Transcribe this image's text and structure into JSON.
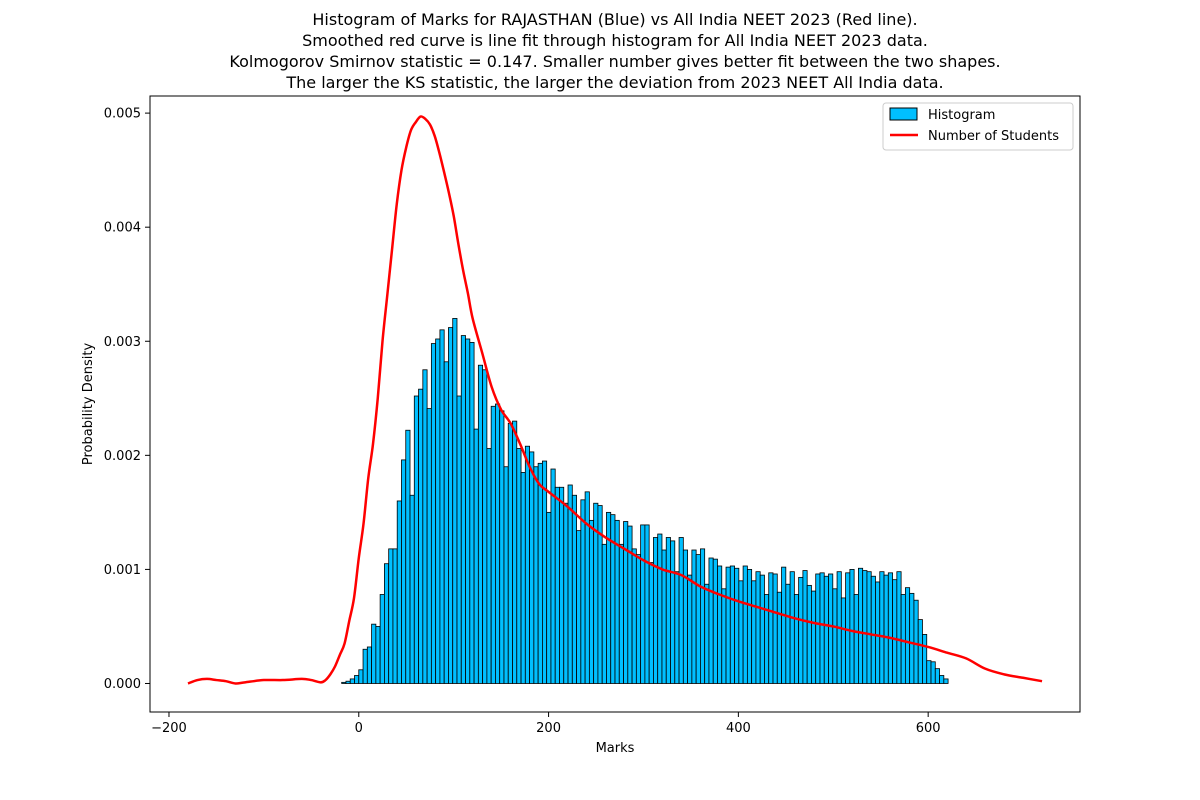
{
  "chart_data": {
    "type": "bar+line",
    "title_lines": [
      "Histogram of Marks for RAJASTHAN (Blue) vs All India NEET 2023 (Red line).",
      "Smoothed red curve is line fit through histogram for All India NEET 2023 data.",
      "Kolmogorov Smirnov statistic = 0.147. Smaller number gives better fit between the two shapes.",
      "The larger the KS statistic, the larger the deviation from 2023 NEET All India data."
    ],
    "xlabel": "Marks",
    "ylabel": "Probability Density",
    "xlim": [
      -220,
      760
    ],
    "ylim": [
      -0.00025,
      0.00515
    ],
    "xticks": [
      -200,
      0,
      200,
      400,
      600
    ],
    "xtick_labels": [
      "−200",
      "0",
      "200",
      "400",
      "600"
    ],
    "yticks": [
      0,
      0.001,
      0.002,
      0.003,
      0.004,
      0.005
    ],
    "ytick_labels": [
      "0.000",
      "0.001",
      "0.002",
      "0.003",
      "0.004",
      "0.005"
    ],
    "legend": {
      "position": "top-right",
      "entries": [
        {
          "label": "Histogram",
          "kind": "bar"
        },
        {
          "label": "Number of Students",
          "kind": "line"
        }
      ]
    },
    "colors": {
      "bar_fill": "#00bfff",
      "bar_edge": "#000000",
      "line": "#ff0000"
    },
    "histogram": {
      "name": "Histogram",
      "bin_start": -180,
      "bin_width": 4.5,
      "values": [
        0,
        0,
        0,
        0,
        0,
        0,
        0,
        0,
        0,
        0,
        0,
        0,
        0,
        0,
        0,
        0,
        0,
        0,
        0,
        0,
        0,
        0,
        0,
        0,
        0,
        0,
        0,
        0,
        0,
        0,
        0,
        0,
        0,
        0,
        0,
        0,
        1e-05,
        2e-05,
        4e-05,
        7e-05,
        0.00012,
        0.0003,
        0.00032,
        0.00052,
        0.0005,
        0.00078,
        0.00105,
        0.00118,
        0.00118,
        0.0016,
        0.00196,
        0.00222,
        0.00165,
        0.00252,
        0.00258,
        0.00275,
        0.00241,
        0.00298,
        0.00302,
        0.0031,
        0.00282,
        0.00312,
        0.0032,
        0.00252,
        0.00305,
        0.00302,
        0.00299,
        0.00223,
        0.00279,
        0.00275,
        0.00206,
        0.00243,
        0.00245,
        0.00239,
        0.0019,
        0.00228,
        0.0023,
        0.00206,
        0.00185,
        0.00208,
        0.00203,
        0.0019,
        0.00193,
        0.00195,
        0.0015,
        0.00188,
        0.00172,
        0.00172,
        0.00158,
        0.00174,
        0.00165,
        0.00134,
        0.00161,
        0.00168,
        0.00143,
        0.00158,
        0.00156,
        0.00122,
        0.0015,
        0.00148,
        0.00143,
        0.00122,
        0.00142,
        0.00138,
        0.00118,
        0.00113,
        0.00139,
        0.00139,
        0.00106,
        0.00128,
        0.00131,
        0.00117,
        0.00128,
        0.00125,
        0.00098,
        0.00128,
        0.00117,
        0.00095,
        0.00117,
        0.00113,
        0.00118,
        0.00087,
        0.0011,
        0.00109,
        0.00103,
        0.00083,
        0.00102,
        0.00103,
        0.00101,
        0.0009,
        0.00103,
        0.001,
        0.0009,
        0.00098,
        0.00095,
        0.00078,
        0.00097,
        0.00096,
        0.0008,
        0.00102,
        0.00087,
        0.00098,
        0.00078,
        0.00093,
        0.00099,
        0.00086,
        0.00081,
        0.00096,
        0.00097,
        0.00094,
        0.00096,
        0.00083,
        0.00098,
        0.00075,
        0.00097,
        0.001,
        0.00078,
        0.00101,
        0.00099,
        0.00098,
        0.00094,
        0.00089,
        0.00098,
        0.00095,
        0.00097,
        0.00091,
        0.00098,
        0.00078,
        0.00084,
        0.00079,
        0.00073,
        0.00056,
        0.00043,
        0.0002,
        0.00019,
        0.00013,
        7e-05,
        4e-05
      ]
    },
    "line_series": {
      "name": "Number of Students",
      "x": [
        -180,
        -170,
        -160,
        -150,
        -140,
        -130,
        -120,
        -100,
        -80,
        -60,
        -50,
        -40,
        -35,
        -30,
        -25,
        -20,
        -15,
        -10,
        -5,
        0,
        5,
        10,
        15,
        20,
        25,
        30,
        35,
        40,
        45,
        50,
        55,
        60,
        65,
        70,
        75,
        80,
        85,
        90,
        95,
        100,
        105,
        110,
        115,
        120,
        130,
        140,
        150,
        160,
        170,
        180,
        190,
        200,
        220,
        240,
        260,
        280,
        300,
        320,
        340,
        360,
        380,
        400,
        420,
        440,
        460,
        480,
        500,
        520,
        540,
        560,
        580,
        600,
        620,
        640,
        660,
        680,
        700,
        720
      ],
      "y": [
        0,
        3e-05,
        4e-05,
        3e-05,
        2e-05,
        0,
        1e-05,
        3e-05,
        3e-05,
        4e-05,
        3e-05,
        1e-05,
        3e-05,
        8e-05,
        0.00015,
        0.00025,
        0.00035,
        0.00055,
        0.00075,
        0.0011,
        0.0014,
        0.0018,
        0.0021,
        0.0025,
        0.003,
        0.0034,
        0.0038,
        0.0042,
        0.0045,
        0.0047,
        0.00485,
        0.00492,
        0.00497,
        0.00495,
        0.0049,
        0.0048,
        0.00465,
        0.00448,
        0.0043,
        0.0041,
        0.00385,
        0.00362,
        0.00342,
        0.0032,
        0.0029,
        0.0026,
        0.0024,
        0.00228,
        0.0021,
        0.0019,
        0.00175,
        0.00168,
        0.00155,
        0.0014,
        0.00128,
        0.00118,
        0.00108,
        0.001,
        0.00095,
        0.00085,
        0.00078,
        0.00072,
        0.00067,
        0.00062,
        0.00057,
        0.00053,
        0.0005,
        0.00046,
        0.00043,
        0.0004,
        0.00036,
        0.00032,
        0.00027,
        0.00022,
        0.00013,
        8e-05,
        5e-05,
        2e-05
      ]
    }
  }
}
